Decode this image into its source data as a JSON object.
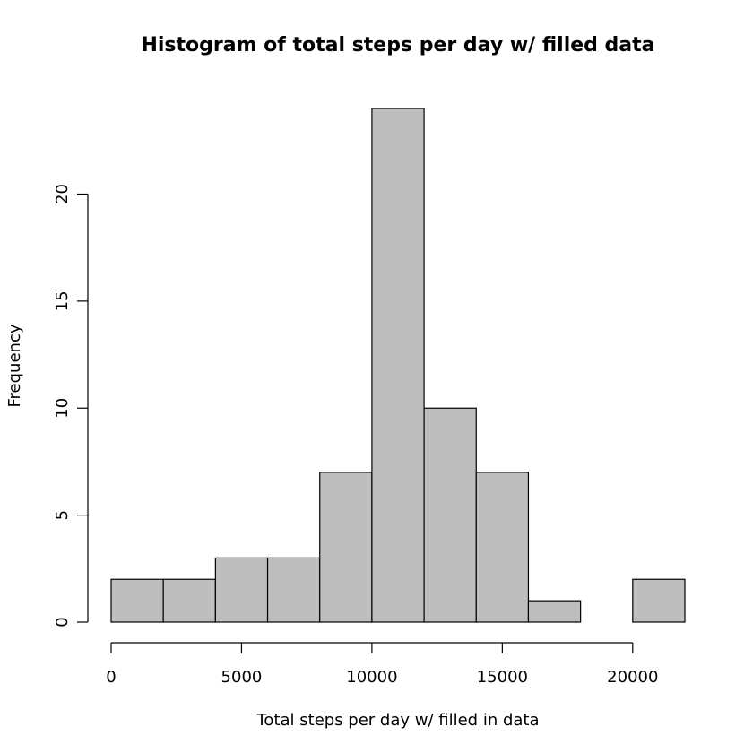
{
  "chart_data": {
    "type": "bar",
    "title": "Histogram of total steps per day w/ filled data",
    "xlabel": "Total steps per day w/ filled in data",
    "ylabel": "Frequency",
    "bins": [
      {
        "from": 0,
        "to": 2000,
        "count": 2
      },
      {
        "from": 2000,
        "to": 4000,
        "count": 2
      },
      {
        "from": 4000,
        "to": 6000,
        "count": 3
      },
      {
        "from": 6000,
        "to": 8000,
        "count": 3
      },
      {
        "from": 8000,
        "to": 10000,
        "count": 7
      },
      {
        "from": 10000,
        "to": 12000,
        "count": 24
      },
      {
        "from": 12000,
        "to": 14000,
        "count": 10
      },
      {
        "from": 14000,
        "to": 16000,
        "count": 7
      },
      {
        "from": 16000,
        "to": 18000,
        "count": 1
      },
      {
        "from": 18000,
        "to": 20000,
        "count": 0
      },
      {
        "from": 20000,
        "to": 22000,
        "count": 2
      }
    ],
    "xlim": [
      0,
      22000
    ],
    "ylim": [
      0,
      24
    ],
    "x_ticks": [
      0,
      5000,
      10000,
      15000,
      20000
    ],
    "y_ticks": [
      0,
      5,
      10,
      15,
      20
    ],
    "grid": false,
    "bar_fill": "#bebebe",
    "bar_stroke": "#000000"
  }
}
